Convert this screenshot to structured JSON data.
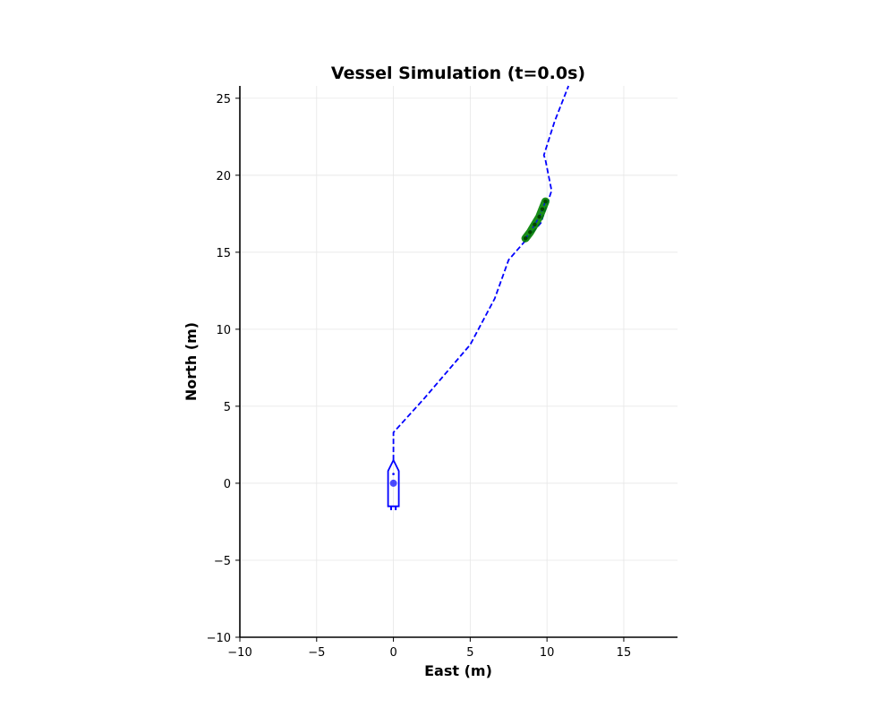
{
  "chart_data": {
    "type": "line",
    "title": "Vessel Simulation (t=0.0s)",
    "xlabel": "East (m)",
    "ylabel": "North (m)",
    "xlim": [
      -10,
      18.5
    ],
    "ylim": [
      -10,
      25.8
    ],
    "xticks": [
      -10,
      -5,
      0,
      5,
      10,
      15
    ],
    "yticks": [
      -10,
      -5,
      0,
      5,
      10,
      15,
      20,
      25
    ],
    "xtick_labels": [
      "−10",
      "−5",
      "0",
      "5",
      "10",
      "15"
    ],
    "ytick_labels": [
      "−10",
      "−5",
      "0",
      "5",
      "10",
      "15",
      "20",
      "25"
    ],
    "grid": true,
    "series": [
      {
        "style": "dashed",
        "color": "#0000ff",
        "x": [
          0,
          0,
          2,
          5,
          6.6,
          7.5,
          9.6,
          10.3,
          9.9,
          9.8,
          10.5,
          11.4
        ],
        "y": [
          1.5,
          3.3,
          5.5,
          9.0,
          12.0,
          14.5,
          16.9,
          19.0,
          21.0,
          21.3,
          23.5,
          25.8
        ]
      },
      {
        "style": "solid",
        "color": "#008000",
        "x": [
          8.6,
          8.9,
          9.2,
          9.5,
          9.7,
          9.9
        ],
        "y": [
          15.9,
          16.3,
          16.8,
          17.3,
          17.8,
          18.3
        ]
      }
    ],
    "vessel": {
      "color": "#0000ff",
      "x": 0,
      "y": 0,
      "heading_deg": 0
    }
  }
}
